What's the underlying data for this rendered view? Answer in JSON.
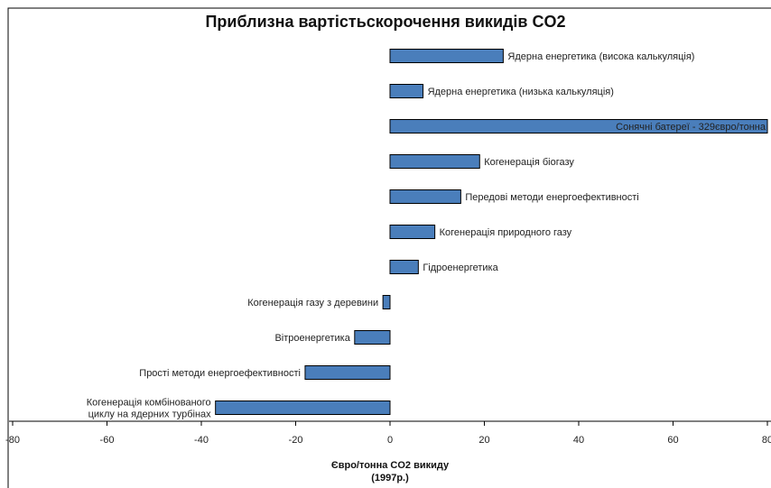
{
  "chart_data": {
    "type": "bar",
    "orientation": "horizontal",
    "title": "Приблизна вартістьскорочення викидів CO2",
    "xlabel_lines": [
      "Євро/тонна CO2 викиду",
      "(1997р.)"
    ],
    "xlim": [
      -80,
      80
    ],
    "xticks": [
      -80,
      -60,
      -40,
      -20,
      0,
      20,
      40,
      60,
      80
    ],
    "grid": false,
    "legend": "none",
    "bar_color": "#4a7ebb",
    "bar_edge_color": "#000000",
    "categories": [
      {
        "label": "Ядерна енергетика (висока калькуляція)",
        "value": 24,
        "label_side": "right"
      },
      {
        "label": "Ядерна енергетика (низька калькуляція)",
        "value": 7,
        "label_side": "right"
      },
      {
        "label": "Сонячні батереї - 329євро/тонна",
        "value": 329,
        "label_side": "inside"
      },
      {
        "label": "Когенерація біогазу",
        "value": 19,
        "label_side": "right"
      },
      {
        "label": "Передові методи енергоефективності",
        "value": 15,
        "label_side": "right"
      },
      {
        "label": "Когенерація природного газу",
        "value": 9.5,
        "label_side": "right"
      },
      {
        "label": "Гідроенергетика",
        "value": 6,
        "label_side": "right"
      },
      {
        "label": "Когенерація газу з деревини",
        "value": -1.5,
        "label_side": "left"
      },
      {
        "label": "Вітроенергетика",
        "value": -7.5,
        "label_side": "left"
      },
      {
        "label": "Прості методи енергоефективності",
        "value": -18,
        "label_side": "left"
      },
      {
        "label": "Когенерація комбінованого\nциклу на ядерних турбінах",
        "value": -37,
        "label_side": "left"
      }
    ]
  }
}
